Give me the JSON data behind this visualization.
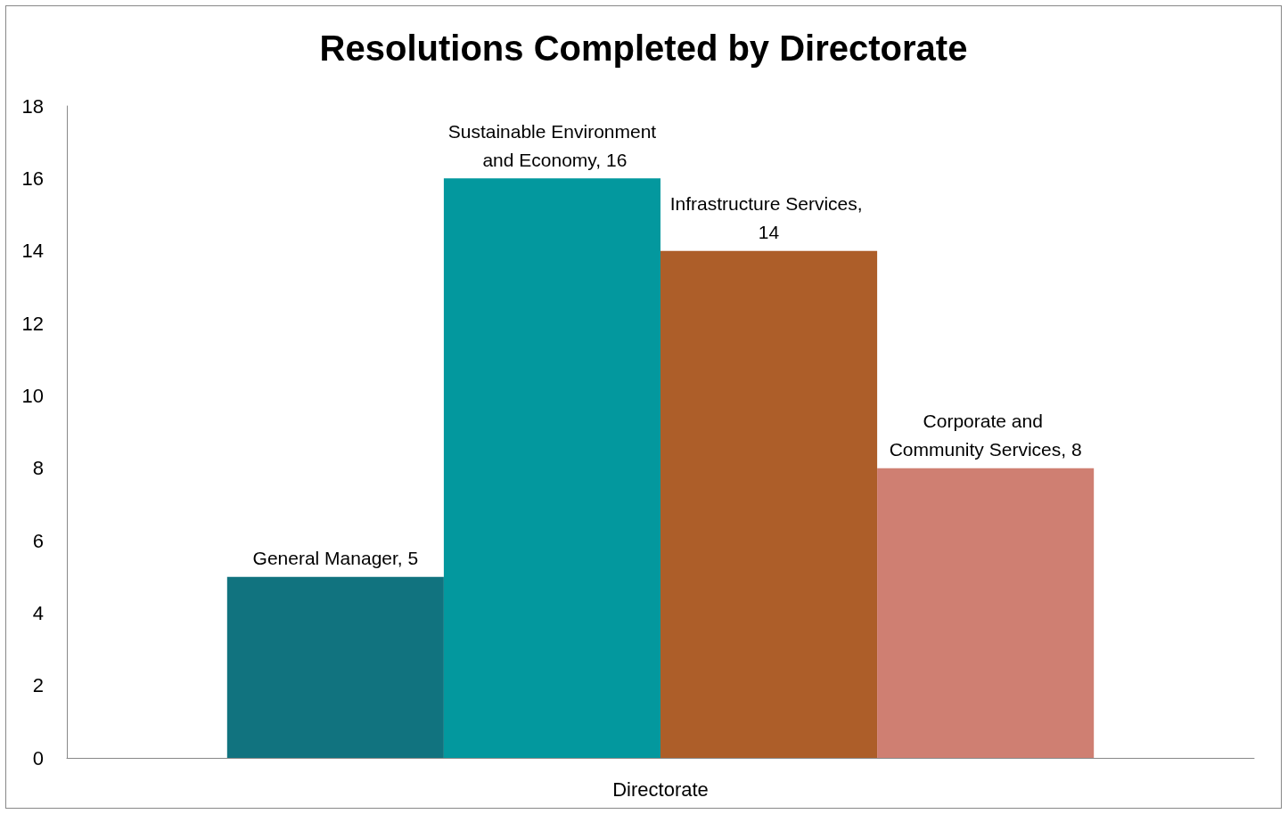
{
  "chart_data": {
    "type": "bar",
    "title": "Resolutions Completed by Directorate",
    "categories": [
      "Directorate"
    ],
    "series": [
      {
        "color": "#11737f",
        "values": [
          5
        ],
        "value_labels": [
          "General Manager, 5"
        ]
      },
      {
        "color": "#03989e",
        "values": [
          16
        ],
        "value_labels": [
          "Sustainable Environment and Economy, 16"
        ]
      },
      {
        "color": "#ad5e29",
        "values": [
          14
        ],
        "value_labels": [
          "Infrastructure Services, 14"
        ]
      },
      {
        "color": "#cf7f72",
        "values": [
          8
        ],
        "value_labels": [
          "Corporate and Community Services, 8"
        ]
      }
    ],
    "ylim": [
      0,
      18
    ],
    "yticks": [
      0,
      2,
      4,
      6,
      8,
      10,
      12,
      14,
      16,
      18
    ],
    "grid": false
  }
}
